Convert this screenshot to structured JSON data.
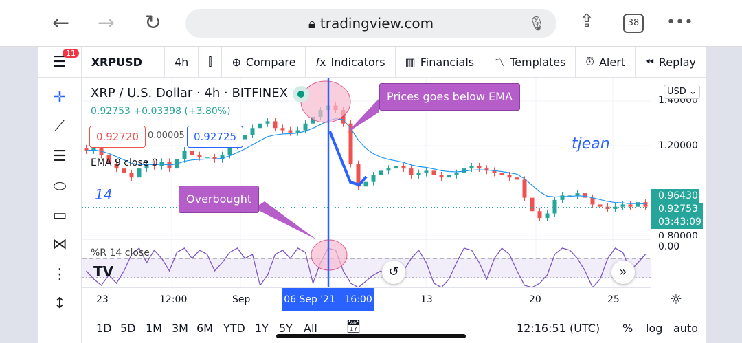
{
  "browser": {
    "url": "tradingview.com",
    "tab_count": "38",
    "back": "←",
    "forward": "→",
    "reload": "↻",
    "more": "•••"
  },
  "toolbar": {
    "badge": "11",
    "symbol": "XRPUSD",
    "interval": "4h",
    "compare": "Compare",
    "indicators": "Indicators",
    "financials": "Financials",
    "templates": "Templates",
    "alert": "Alert",
    "replay": "Replay"
  },
  "legend": {
    "title": "XRP / U.S. Dollar · 4h · BITFINEX",
    "price": "0.92753",
    "change": "+0.03398 (+3.80%)",
    "bid": "0.92720",
    "spread": "0.00005",
    "ask": "0.92725",
    "ema": "EMA 9 close 0",
    "wr": "%R 14 close"
  },
  "annotations": {
    "callout_ema": "Prices goes below EMA",
    "callout_ob": "Overbought",
    "author": "tjean",
    "num": "14"
  },
  "axis": {
    "currency": "USD",
    "ticks": [
      "1.40000",
      "1.20000",
      "0.80000"
    ],
    "last": "0.96430",
    "price": "0.92753",
    "countdown": "03:43:09",
    "wr_tick": "0.00"
  },
  "timeaxis": {
    "labels": [
      "23",
      "12:00",
      "Sep",
      "13",
      "20",
      "25"
    ],
    "crosshair": "06 Sep '21   16:00"
  },
  "bottom": {
    "ranges": [
      "1D",
      "5D",
      "1M",
      "3M",
      "6M",
      "YTD",
      "1Y",
      "5Y",
      "All"
    ],
    "time": "12:16:51 (UTC)",
    "pct": "%",
    "log": "log",
    "auto": "auto"
  },
  "colors": {
    "up": "#26a69a",
    "down": "#ef5350",
    "ema": "#2196f3",
    "wr": "#7e57c2",
    "callout": "#b55ec9",
    "crosshair": "#2962ff"
  },
  "chart_data": {
    "type": "candlestick",
    "ylim": [
      0.78,
      1.45
    ],
    "closes": [
      1.18,
      1.19,
      1.16,
      1.12,
      1.1,
      1.08,
      1.06,
      1.1,
      1.12,
      1.11,
      1.13,
      1.1,
      1.14,
      1.18,
      1.16,
      1.15,
      1.15,
      1.14,
      1.16,
      1.2,
      1.23,
      1.25,
      1.28,
      1.3,
      1.31,
      1.28,
      1.27,
      1.26,
      1.27,
      1.3,
      1.33,
      1.36,
      1.38,
      1.36,
      1.3,
      1.12,
      1.02,
      1.04,
      1.07,
      1.09,
      1.1,
      1.11,
      1.1,
      1.07,
      1.08,
      1.09,
      1.07,
      1.06,
      1.07,
      1.08,
      1.1,
      1.11,
      1.1,
      1.09,
      1.08,
      1.07,
      1.06,
      1.05,
      0.97,
      0.91,
      0.88,
      0.9,
      0.96,
      0.98,
      0.98,
      0.99,
      0.97,
      0.94,
      0.93,
      0.92,
      0.93,
      0.94,
      0.93,
      0.95,
      0.93
    ],
    "wr": [
      -60,
      -80,
      -95,
      -70,
      -90,
      -60,
      -20,
      -5,
      -40,
      -10,
      -30,
      -60,
      -15,
      -5,
      -30,
      -10,
      -20,
      -60,
      -40,
      -15,
      -5,
      -30,
      -20,
      -95,
      -70,
      -20,
      -10,
      -30,
      -5,
      -15,
      -90,
      -40,
      -5,
      -10,
      -60,
      -90,
      -100,
      -85,
      -70,
      -60,
      -80,
      -90,
      -60,
      -30,
      -10,
      -40,
      -90,
      -100,
      -80,
      -40,
      -5,
      -10,
      -40,
      -80,
      -30,
      -5,
      -20,
      -60,
      -95,
      -100,
      -90,
      -70,
      -20,
      -5,
      -10,
      -30,
      -60,
      -100,
      -80,
      -30,
      -5,
      -15,
      -60,
      -40,
      -20
    ]
  }
}
